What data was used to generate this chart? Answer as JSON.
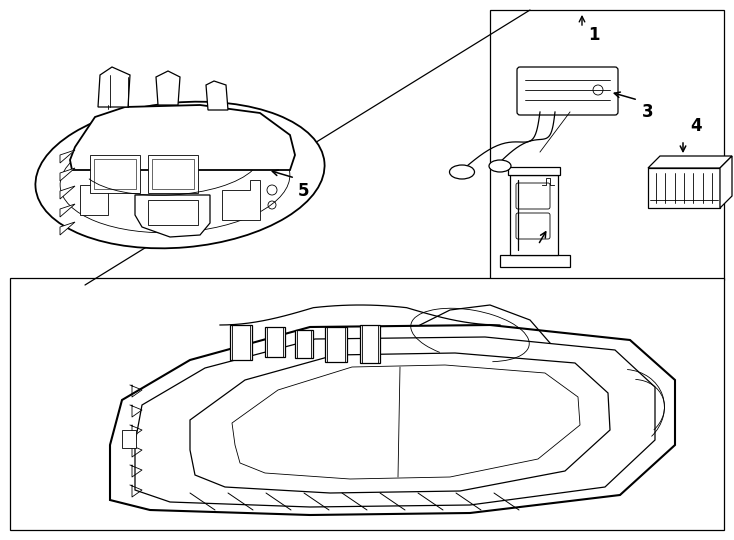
{
  "bg_color": "#ffffff",
  "line_color": "#000000",
  "lw_main": 1.3,
  "lw_med": 0.9,
  "lw_thin": 0.6,
  "lw_stripe": 0.7
}
